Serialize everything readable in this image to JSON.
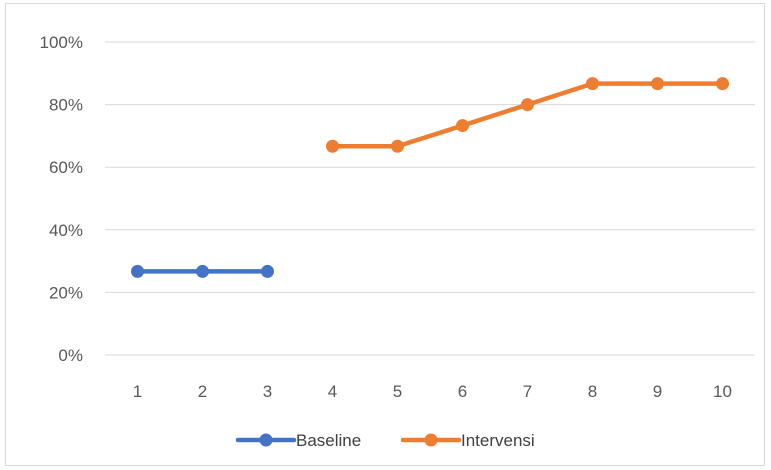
{
  "chart_data": {
    "type": "line",
    "title": "",
    "xlabel": "",
    "ylabel": "",
    "categories": [
      "1",
      "2",
      "3",
      "4",
      "5",
      "6",
      "7",
      "8",
      "9",
      "10"
    ],
    "ylim": [
      0,
      1
    ],
    "yticks": [
      0,
      0.2,
      0.4,
      0.6,
      0.8,
      1.0
    ],
    "ytick_labels": [
      "0%",
      "20%",
      "40%",
      "60%",
      "80%",
      "100%"
    ],
    "grid": true,
    "legend_position": "bottom",
    "series": [
      {
        "name": "Baseline",
        "color": "#4472c4",
        "values": [
          0.267,
          0.267,
          0.267,
          null,
          null,
          null,
          null,
          null,
          null,
          null
        ]
      },
      {
        "name": "Intervensi",
        "color": "#ed7d31",
        "values": [
          null,
          null,
          null,
          0.667,
          0.667,
          0.733,
          0.8,
          0.867,
          0.867,
          0.867
        ]
      }
    ]
  }
}
